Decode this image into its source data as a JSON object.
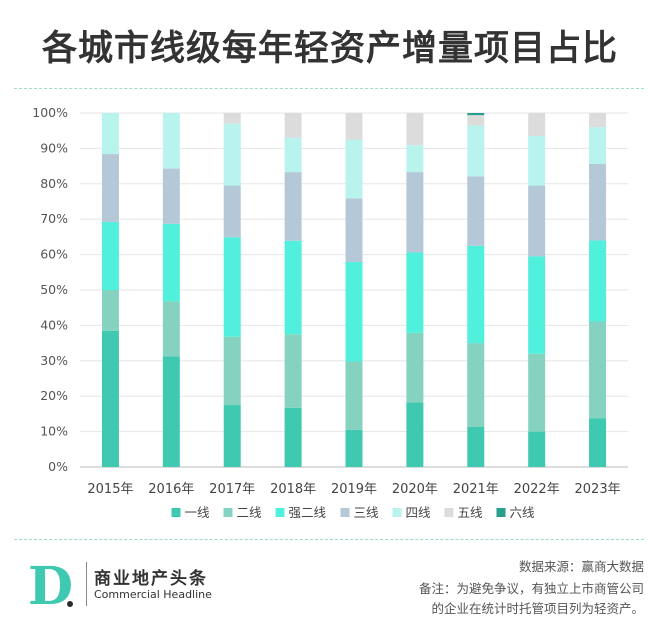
{
  "title": "各城市线级每年轻资产增量项目占比",
  "brand": {
    "logo_letter": "D",
    "name_cn": "商业地产头条",
    "name_en": "Commercial Headline"
  },
  "notes": {
    "source": "数据来源：赢商大数据",
    "remark_line1": "备注：为避免争议，有独立上市商管公司",
    "remark_line2": "的企业在统计时托管项目列为轻资产。"
  },
  "colors": {
    "accent": "#3ec9b0",
    "series": [
      "#3ec9b0",
      "#85d2c0",
      "#50f0dc",
      "#b4c8d8",
      "#b9f3ee",
      "#dcdcdc",
      "#2a9e8e"
    ]
  },
  "chart_data": {
    "type": "bar",
    "stacked": true,
    "categories": [
      "2015年",
      "2016年",
      "2017年",
      "2018年",
      "2019年",
      "2020年",
      "2021年",
      "2022年",
      "2023年"
    ],
    "y_ticks": [
      "0%",
      "10%",
      "20%",
      "30%",
      "40%",
      "50%",
      "60%",
      "70%",
      "80%",
      "90%",
      "100%"
    ],
    "ylim": [
      0,
      100
    ],
    "legend_position": "bottom",
    "series": [
      {
        "name": "一线",
        "values": [
          38.5,
          31.2,
          17.5,
          16.7,
          10.5,
          18.2,
          11.3,
          10.0,
          13.7
        ]
      },
      {
        "name": "二线",
        "values": [
          11.5,
          15.6,
          19.3,
          20.8,
          19.3,
          19.7,
          23.7,
          22.0,
          27.4
        ]
      },
      {
        "name": "强二线",
        "values": [
          19.2,
          21.9,
          28.1,
          26.4,
          28.1,
          22.7,
          27.5,
          27.5,
          22.9
        ]
      },
      {
        "name": "三线",
        "values": [
          19.2,
          15.6,
          14.6,
          19.4,
          18.0,
          22.7,
          19.6,
          20.0,
          21.6
        ]
      },
      {
        "name": "四线",
        "values": [
          11.6,
          15.7,
          17.5,
          9.7,
          16.6,
          7.6,
          14.4,
          14.0,
          10.4
        ]
      },
      {
        "name": "五线",
        "values": [
          0,
          0,
          3.0,
          7.0,
          7.5,
          9.1,
          2.9,
          6.5,
          4.0
        ]
      },
      {
        "name": "六线",
        "values": [
          0,
          0,
          0,
          0,
          0,
          0,
          0.6,
          0,
          0
        ]
      }
    ]
  }
}
